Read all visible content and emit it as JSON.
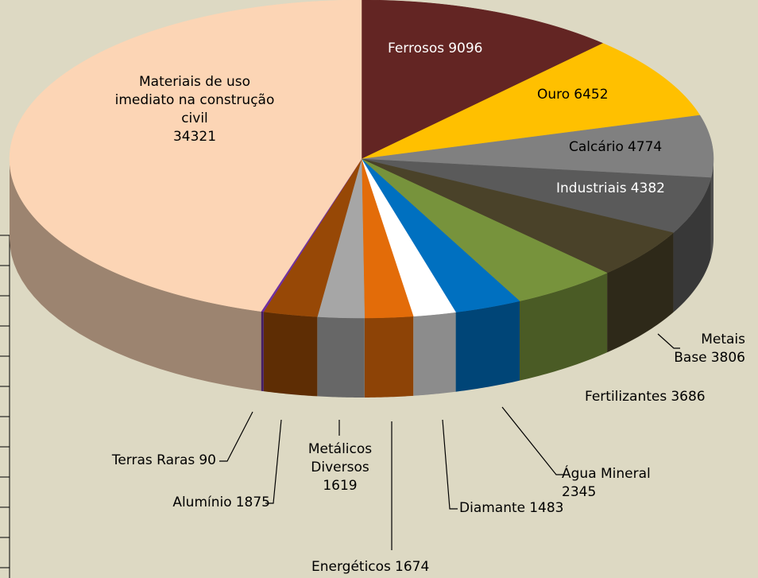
{
  "chart_data": {
    "type": "pie3d",
    "categories": [
      "Ferrosos",
      "Ouro",
      "Calcário",
      "Industriais",
      "Metais Base",
      "Fertilizantes",
      "Água Mineral",
      "Diamante",
      "Energéticos",
      "Metálicos Diversos",
      "Alumínio",
      "Terras Raras",
      "Materiais de uso imediato na construção civil"
    ],
    "values": [
      9096,
      6452,
      4774,
      4382,
      3806,
      3686,
      2345,
      1483,
      1674,
      1619,
      1875,
      90,
      34321
    ],
    "colors": [
      "#632523",
      "#ffc000",
      "#808080",
      "#5a5a5a",
      "#4a4229",
      "#77933c",
      "#0070c0",
      "#ffffff",
      "#e36c09",
      "#a6a6a6",
      "#974806",
      "#7030a0",
      "#fcd5b5"
    ]
  }
}
